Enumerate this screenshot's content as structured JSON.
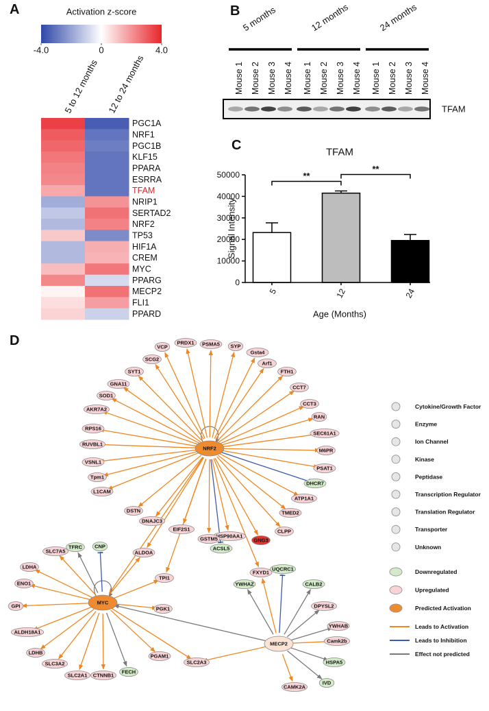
{
  "panels": {
    "a": "A",
    "b": "B",
    "c": "C",
    "d": "D"
  },
  "chart_data": [
    {
      "type": "heatmap",
      "colorbar_label": "Activation z-score",
      "zlim": [
        -4,
        4
      ],
      "zticks": [
        {
          "value": -4,
          "label": "-4.0"
        },
        0,
        {
          "value": 4,
          "label": "4.0"
        }
      ],
      "colors": [
        "#2f47a8",
        "#ffffff",
        "#e8262b"
      ],
      "columns": [
        "5 to 12 months",
        "12 to 24 months"
      ],
      "rows": [
        "PGC1A",
        "NRF1",
        "PGC1B",
        "KLF15",
        "PPARA",
        "ESRRA",
        "TFAM",
        "NRIP1",
        "SERTAD2",
        "NRF2",
        "TP53",
        "HIF1A",
        "CREM",
        "MYC",
        "PPARG",
        "MECP2",
        "FLI1",
        "PPARD"
      ],
      "row_label_colors": [
        "#111111",
        "#111111",
        "#111111",
        "#111111",
        "#111111",
        "#111111",
        "#d0282e",
        "#111111",
        "#111111",
        "#111111",
        "#111111",
        "#111111",
        "#111111",
        "#111111",
        "#111111",
        "#111111",
        "#111111",
        "#111111"
      ],
      "values": [
        [
          3.5,
          -3.5
        ],
        [
          3.0,
          -3.0
        ],
        [
          2.8,
          -2.8
        ],
        [
          2.5,
          -3.0
        ],
        [
          2.3,
          -3.0
        ],
        [
          2.2,
          -3.0
        ],
        [
          1.6,
          -3.0
        ],
        [
          -1.8,
          2.0
        ],
        [
          -1.2,
          2.6
        ],
        [
          -1.5,
          2.3
        ],
        [
          1.0,
          -2.5
        ],
        [
          -1.5,
          1.5
        ],
        [
          -1.5,
          1.4
        ],
        [
          1.2,
          2.5
        ],
        [
          2.2,
          -0.8
        ],
        [
          0.2,
          2.6
        ],
        [
          0.6,
          1.8
        ],
        [
          0.8,
          -1.0
        ]
      ]
    },
    {
      "type": "bar",
      "title": "TFAM",
      "xlabel": "Age (Months)",
      "ylabel": "Signal Intensity",
      "categories": [
        "5",
        "12",
        "24"
      ],
      "values": [
        23200,
        41500,
        19500
      ],
      "errors": [
        4500,
        1000,
        2800
      ],
      "colors": [
        "#ffffff",
        "#bdbdbd",
        "#000000"
      ],
      "ylim": [
        0,
        50000
      ],
      "yticks": [
        0,
        10000,
        20000,
        30000,
        40000,
        50000
      ],
      "annotations": [
        {
          "text": "**",
          "from": 0,
          "to": 1
        },
        {
          "text": "**",
          "from": 1,
          "to": 2
        }
      ]
    }
  ],
  "blot": {
    "groups": [
      "5 months",
      "12 months",
      "24 months"
    ],
    "lanes": [
      "Mouse 1",
      "Mouse 2",
      "Mouse 3",
      "Mouse 4",
      "Mouse 1",
      "Mouse 2",
      "Mouse 3",
      "Mouse 4",
      "Mouse 1",
      "Mouse 2",
      "Mouse 3",
      "Mouse 4"
    ],
    "band_label": "TFAM"
  },
  "network": {
    "state_colors": {
      "up": "#f7d3d6",
      "down": "#d3ebc8",
      "predicted": "#ee8a30",
      "strong-up": "#de3530",
      "hub-up": "#fbe3d6"
    },
    "effect_colors": {
      "activation": "#f0861f",
      "inhibition": "#3d5aa8",
      "not predicted": "#7a7a7a"
    },
    "nodes": [
      {
        "label": "NRF2",
        "state": "predicted"
      },
      {
        "label": "PSMA5",
        "state": "up"
      },
      {
        "label": "PRDX1",
        "state": "up"
      },
      {
        "label": "VCP",
        "state": "up"
      },
      {
        "label": "SCG2",
        "state": "up"
      },
      {
        "label": "SYT1",
        "state": "up"
      },
      {
        "label": "GNA11",
        "state": "up"
      },
      {
        "label": "SOD1",
        "state": "up"
      },
      {
        "label": "AKR7A2",
        "state": "up"
      },
      {
        "label": "RPS16",
        "state": "up"
      },
      {
        "label": "RUVBL1",
        "state": "up"
      },
      {
        "label": "VSNL1",
        "state": "up"
      },
      {
        "label": "Tpm1",
        "state": "up"
      },
      {
        "label": "L1CAM",
        "state": "up"
      },
      {
        "label": "DSTN",
        "state": "up"
      },
      {
        "label": "DNAJC3",
        "state": "up"
      },
      {
        "label": "EIF2S1",
        "state": "up"
      },
      {
        "label": "SYP",
        "state": "up"
      },
      {
        "label": "Gsta4",
        "state": "up"
      },
      {
        "label": "Arf1",
        "state": "up"
      },
      {
        "label": "FTH1",
        "state": "up"
      },
      {
        "label": "CCT7",
        "state": "up"
      },
      {
        "label": "CCT3",
        "state": "up"
      },
      {
        "label": "RAN",
        "state": "up"
      },
      {
        "label": "SEC61A1",
        "state": "up"
      },
      {
        "label": "M6PR",
        "state": "up"
      },
      {
        "label": "PSAT1",
        "state": "up"
      },
      {
        "label": "DHCR7",
        "state": "down"
      },
      {
        "label": "ATP1A1",
        "state": "up"
      },
      {
        "label": "TMED2",
        "state": "up"
      },
      {
        "label": "CLPP",
        "state": "up"
      },
      {
        "label": "GNG3",
        "state": "strong-up"
      },
      {
        "label": "HSP90AA1",
        "state": "up"
      },
      {
        "label": "GSTM5",
        "state": "up"
      },
      {
        "label": "ACSL5",
        "state": "down"
      },
      {
        "label": "MYC",
        "state": "predicted"
      },
      {
        "label": "TFRC",
        "state": "down"
      },
      {
        "label": "CNP",
        "state": "down"
      },
      {
        "label": "SLC7A5",
        "state": "up"
      },
      {
        "label": "LDHA",
        "state": "up"
      },
      {
        "label": "ENO1",
        "state": "up"
      },
      {
        "label": "GPI",
        "state": "up"
      },
      {
        "label": "ALDH18A1",
        "state": "up"
      },
      {
        "label": "LDHB",
        "state": "up"
      },
      {
        "label": "SLC3A2",
        "state": "up"
      },
      {
        "label": "SLC2A1",
        "state": "up"
      },
      {
        "label": "CTNNB1",
        "state": "up"
      },
      {
        "label": "FECH",
        "state": "down"
      },
      {
        "label": "PGAM1",
        "state": "up"
      },
      {
        "label": "PGK1",
        "state": "up"
      },
      {
        "label": "TPI1",
        "state": "up"
      },
      {
        "label": "ALDOA",
        "state": "up"
      },
      {
        "label": "SLC2A3",
        "state": "up"
      },
      {
        "label": "MECP2",
        "state": "hub-up"
      },
      {
        "label": "FXYD1",
        "state": "up"
      },
      {
        "label": "UQCRC1",
        "state": "down"
      },
      {
        "label": "YWHAZ",
        "state": "down"
      },
      {
        "label": "CALB2",
        "state": "down"
      },
      {
        "label": "DPYSL2",
        "state": "up"
      },
      {
        "label": "YWHAB",
        "state": "up"
      },
      {
        "label": "Camk2b",
        "state": "up"
      },
      {
        "label": "HSPA5",
        "state": "down"
      },
      {
        "label": "IVD",
        "state": "down"
      },
      {
        "label": "CAMK2A",
        "state": "up"
      }
    ],
    "edges": [
      [
        "NRF2",
        "NRF2",
        "not predicted"
      ],
      [
        "NRF2",
        "PSMA5",
        "activation"
      ],
      [
        "NRF2",
        "PRDX1",
        "activation"
      ],
      [
        "NRF2",
        "VCP",
        "activation"
      ],
      [
        "NRF2",
        "SCG2",
        "activation"
      ],
      [
        "NRF2",
        "SYT1",
        "activation"
      ],
      [
        "NRF2",
        "GNA11",
        "activation"
      ],
      [
        "NRF2",
        "SOD1",
        "activation"
      ],
      [
        "NRF2",
        "AKR7A2",
        "activation"
      ],
      [
        "NRF2",
        "RPS16",
        "activation"
      ],
      [
        "NRF2",
        "RUVBL1",
        "activation"
      ],
      [
        "NRF2",
        "VSNL1",
        "activation"
      ],
      [
        "NRF2",
        "Tpm1",
        "activation"
      ],
      [
        "NRF2",
        "L1CAM",
        "activation"
      ],
      [
        "NRF2",
        "DSTN",
        "activation"
      ],
      [
        "NRF2",
        "DNAJC3",
        "activation"
      ],
      [
        "NRF2",
        "EIF2S1",
        "activation"
      ],
      [
        "NRF2",
        "SYP",
        "activation"
      ],
      [
        "NRF2",
        "Gsta4",
        "activation"
      ],
      [
        "NRF2",
        "Arf1",
        "activation"
      ],
      [
        "NRF2",
        "FTH1",
        "activation"
      ],
      [
        "NRF2",
        "CCT7",
        "activation"
      ],
      [
        "NRF2",
        "CCT3",
        "activation"
      ],
      [
        "NRF2",
        "RAN",
        "activation"
      ],
      [
        "NRF2",
        "SEC61A1",
        "activation"
      ],
      [
        "NRF2",
        "M6PR",
        "activation"
      ],
      [
        "NRF2",
        "PSAT1",
        "activation"
      ],
      [
        "NRF2",
        "DHCR7",
        "inhibition"
      ],
      [
        "NRF2",
        "ATP1A1",
        "activation"
      ],
      [
        "NRF2",
        "TMED2",
        "activation"
      ],
      [
        "NRF2",
        "CLPP",
        "activation"
      ],
      [
        "NRF2",
        "GNG3",
        "activation"
      ],
      [
        "NRF2",
        "HSP90AA1",
        "activation"
      ],
      [
        "NRF2",
        "GSTM5",
        "activation"
      ],
      [
        "NRF2",
        "ACSL5",
        "inhibition"
      ],
      [
        "NRF2",
        "ALDOA",
        "activation"
      ],
      [
        "NRF2",
        "TPI1",
        "activation"
      ],
      [
        "NRF2",
        "MYC",
        "activation"
      ],
      [
        "NRF2",
        "FXYD1",
        "activation"
      ],
      [
        "MYC",
        "MYC",
        "not predicted"
      ],
      [
        "MYC",
        "TFRC",
        "not predicted"
      ],
      [
        "MYC",
        "CNP",
        "inhibition"
      ],
      [
        "MYC",
        "SLC7A5",
        "activation"
      ],
      [
        "MYC",
        "LDHA",
        "activation"
      ],
      [
        "MYC",
        "ENO1",
        "activation"
      ],
      [
        "MYC",
        "GPI",
        "activation"
      ],
      [
        "MYC",
        "ALDH18A1",
        "activation"
      ],
      [
        "MYC",
        "LDHB",
        "activation"
      ],
      [
        "MYC",
        "SLC3A2",
        "activation"
      ],
      [
        "MYC",
        "SLC2A1",
        "activation"
      ],
      [
        "MYC",
        "CTNNB1",
        "activation"
      ],
      [
        "MYC",
        "FECH",
        "not predicted"
      ],
      [
        "MYC",
        "PGAM1",
        "activation"
      ],
      [
        "MYC",
        "PGK1",
        "activation"
      ],
      [
        "MYC",
        "TPI1",
        "activation"
      ],
      [
        "MYC",
        "ALDOA",
        "activation"
      ],
      [
        "MYC",
        "SLC2A3",
        "activation"
      ],
      [
        "MECP2",
        "MYC",
        "not predicted"
      ],
      [
        "MECP2",
        "SLC2A3",
        "activation"
      ],
      [
        "MECP2",
        "FXYD1",
        "activation"
      ],
      [
        "MECP2",
        "UQCRC1",
        "inhibition"
      ],
      [
        "MECP2",
        "YWHAZ",
        "not predicted"
      ],
      [
        "MECP2",
        "CALB2",
        "not predicted"
      ],
      [
        "MECP2",
        "DPYSL2",
        "not predicted"
      ],
      [
        "MECP2",
        "YWHAB",
        "not predicted"
      ],
      [
        "MECP2",
        "Camk2b",
        "activation"
      ],
      [
        "MECP2",
        "HSPA5",
        "not predicted"
      ],
      [
        "MECP2",
        "IVD",
        "not predicted"
      ],
      [
        "MECP2",
        "CAMK2A",
        "activation"
      ]
    ]
  },
  "legend": {
    "shapes": [
      "Cytokine/Growth Factor",
      "Enzyme",
      "Ion Channel",
      "Kinase",
      "Peptidase",
      "Transcription Regulator",
      "Translation Regulator",
      "Transporter",
      "Unknown"
    ],
    "states": [
      {
        "label": "Downregulated",
        "state": "down"
      },
      {
        "label": "Upregulated",
        "state": "up"
      },
      {
        "label": "Predicted Activation",
        "state": "predicted"
      }
    ],
    "effects": [
      {
        "label": "Leads to Activation",
        "effect": "activation"
      },
      {
        "label": "Leads to Inhibition",
        "effect": "inhibition"
      },
      {
        "label": "Effect not predicted",
        "effect": "not predicted"
      }
    ]
  }
}
